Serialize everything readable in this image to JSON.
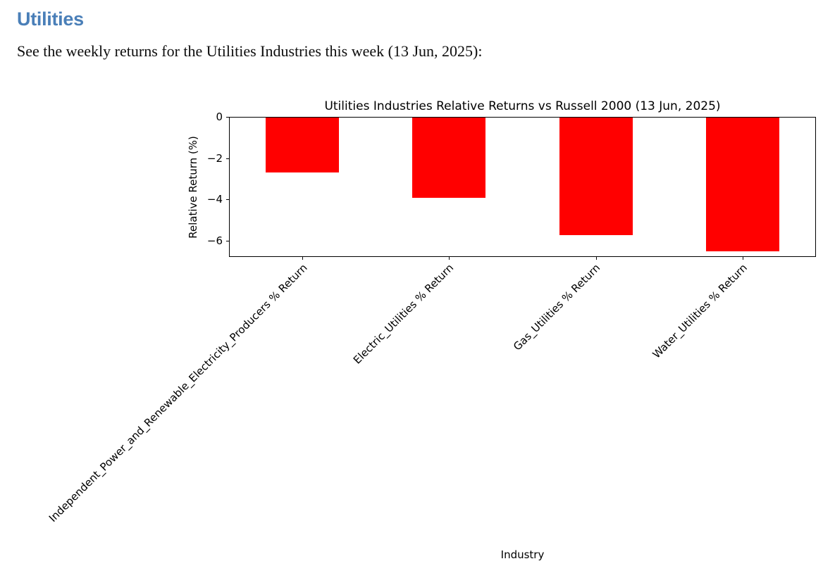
{
  "page": {
    "heading": "Utilities",
    "description": "See the weekly returns for the Utilities Industries this week (13 Jun, 2025):"
  },
  "colors": {
    "heading_accent": "#4a7fb8",
    "bar": "#ff0000",
    "axis": "#000000"
  },
  "chart_data": {
    "type": "bar",
    "title": "Utilities Industries Relative Returns vs Russell 2000 (13 Jun, 2025)",
    "xlabel": "Industry",
    "ylabel": "Relative Return (%)",
    "categories": [
      "Independent_Power_and_Renewable_Electricity_Producers % Return",
      "Electric_Utilities % Return",
      "Gas_Utilities % Return",
      "Water_Utilities % Return"
    ],
    "values": [
      -2.7,
      -3.95,
      -5.75,
      -6.55
    ],
    "yticks": [
      0,
      -2,
      -4,
      -6
    ],
    "ylim": [
      -6.8,
      0
    ],
    "xtick_rotation_deg": 45,
    "bar_color": "#ff0000",
    "bar_width_fraction": 0.5,
    "grid": false,
    "legend": "none"
  }
}
